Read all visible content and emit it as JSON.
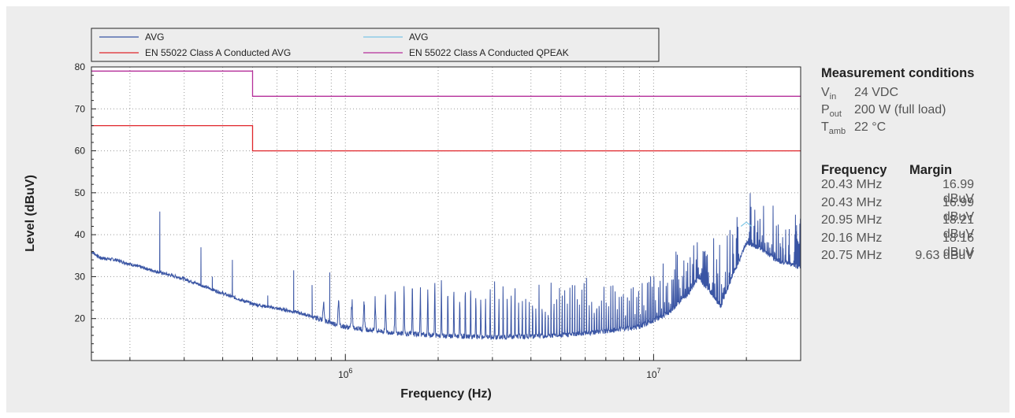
{
  "conditions": {
    "title": "Measurement conditions",
    "rows": [
      {
        "sym": "V",
        "sub": "in",
        "value": "24 VDC"
      },
      {
        "sym": "P",
        "sub": "out",
        "value": "200 W (full load)"
      },
      {
        "sym": "T",
        "sub": "amb",
        "value": "22 °C"
      }
    ]
  },
  "margin_table": {
    "headers": [
      "Frequency",
      "Margin"
    ],
    "rows": [
      [
        "20.43 MHz",
        "16.99 dBuV"
      ],
      [
        "20.43 MHz",
        "16.99 dBuV"
      ],
      [
        "20.95 MHz",
        "18.21 dBuV"
      ],
      [
        "20.16 MHz",
        "18.16 dBuV"
      ],
      [
        "20.75 MHz",
        "9.63 dBuV"
      ]
    ]
  },
  "chart_data": {
    "type": "line",
    "title": "",
    "xlabel": "Frequency (Hz)",
    "ylabel": "Level (dBuV)",
    "xscale": "log",
    "xlim": [
      150000,
      30000000
    ],
    "ylim": [
      10,
      80
    ],
    "yticks": [
      20,
      30,
      40,
      50,
      60,
      70,
      80
    ],
    "xtick_labels": [
      {
        "base": "10",
        "exp": "6",
        "value": 1000000
      },
      {
        "base": "10",
        "exp": "7",
        "value": 10000000
      }
    ],
    "grid": true,
    "legend_position": "top",
    "colors": {
      "avg_blue": "#3a55a4",
      "avg_cyan": "#7cc6e6",
      "limit_avg": "#e0262b",
      "limit_qpeak": "#b5309a",
      "background": "#ededed"
    },
    "series": [
      {
        "name": "AVG",
        "color": "#3a55a4",
        "kind": "measurement",
        "baseline": [
          [
            150000,
            36
          ],
          [
            160000,
            34.5
          ],
          [
            180000,
            34
          ],
          [
            200000,
            33
          ],
          [
            250000,
            31
          ],
          [
            300000,
            29.5
          ],
          [
            400000,
            26
          ],
          [
            500000,
            23.5
          ],
          [
            700000,
            21.5
          ],
          [
            1000000,
            18
          ],
          [
            1500000,
            16.5
          ],
          [
            2000000,
            16
          ],
          [
            3000000,
            15.5
          ],
          [
            5000000,
            16
          ],
          [
            7000000,
            17
          ],
          [
            9000000,
            18
          ],
          [
            11000000,
            21
          ],
          [
            13000000,
            26
          ],
          [
            14000000,
            30
          ],
          [
            15000000,
            27
          ],
          [
            16500000,
            23
          ],
          [
            18000000,
            30
          ],
          [
            20000000,
            38
          ],
          [
            22000000,
            37
          ],
          [
            25000000,
            34
          ],
          [
            30000000,
            32
          ]
        ],
        "upper_envelope": [
          [
            800000,
            23
          ],
          [
            1000000,
            26
          ],
          [
            2000000,
            30
          ],
          [
            4000000,
            30
          ],
          [
            6000000,
            30.5
          ],
          [
            9000000,
            32
          ],
          [
            11000000,
            34
          ],
          [
            13000000,
            40
          ],
          [
            14000000,
            44
          ],
          [
            15000000,
            40
          ],
          [
            17000000,
            40
          ],
          [
            18000000,
            47
          ],
          [
            20000000,
            56
          ],
          [
            22000000,
            52
          ],
          [
            25000000,
            48
          ],
          [
            30000000,
            46
          ]
        ],
        "spikes": [
          [
            250000,
            45.5
          ],
          [
            340000,
            37
          ],
          [
            370000,
            30
          ],
          [
            430000,
            34
          ],
          [
            560000,
            25.5
          ],
          [
            680000,
            31.5
          ],
          [
            780000,
            28
          ],
          [
            890000,
            31
          ]
        ]
      },
      {
        "name": "AVG",
        "color": "#7cc6e6",
        "kind": "measurement",
        "points": [
          [
            19200000,
            42
          ],
          [
            20000000,
            43
          ],
          [
            20800000,
            42
          ]
        ]
      },
      {
        "name": "EN 55022 Class A Conducted AVG",
        "color": "#e0262b",
        "kind": "limit",
        "points": [
          [
            150000,
            66
          ],
          [
            500000,
            66
          ],
          [
            500000,
            60
          ],
          [
            30000000,
            60
          ]
        ]
      },
      {
        "name": "EN 55022 Class A Conducted QPEAK",
        "color": "#b5309a",
        "kind": "limit",
        "points": [
          [
            150000,
            79
          ],
          [
            500000,
            79
          ],
          [
            500000,
            73
          ],
          [
            30000000,
            73
          ]
        ]
      }
    ]
  }
}
